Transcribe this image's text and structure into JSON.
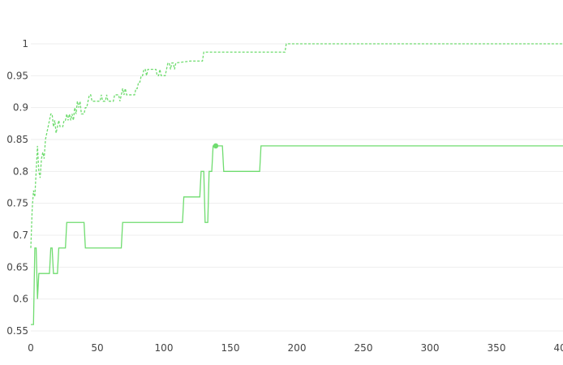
{
  "chart_data": {
    "type": "line",
    "xlim": [
      0,
      400
    ],
    "ylim": [
      0.55,
      1.0
    ],
    "x_ticks": [
      "0",
      "50",
      "100",
      "150",
      "200",
      "250",
      "300",
      "350",
      "400"
    ],
    "y_ticks": [
      "0.55",
      "0.6",
      "0.65",
      "0.7",
      "0.75",
      "0.8",
      "0.85",
      "0.9",
      "0.95",
      "1"
    ],
    "grid": "horizontal",
    "series": [
      {
        "style": "dashed",
        "color": "#6fdc6f",
        "points": [
          [
            0,
            0.68
          ],
          [
            1,
            0.74
          ],
          [
            2,
            0.77
          ],
          [
            3,
            0.76
          ],
          [
            4,
            0.8
          ],
          [
            5,
            0.84
          ],
          [
            6,
            0.8
          ],
          [
            7,
            0.79
          ],
          [
            8,
            0.82
          ],
          [
            9,
            0.83
          ],
          [
            10,
            0.82
          ],
          [
            11,
            0.85
          ],
          [
            12,
            0.86
          ],
          [
            13,
            0.87
          ],
          [
            14,
            0.88
          ],
          [
            15,
            0.89
          ],
          [
            16,
            0.89
          ],
          [
            17,
            0.87
          ],
          [
            18,
            0.88
          ],
          [
            19,
            0.86
          ],
          [
            20,
            0.87
          ],
          [
            21,
            0.88
          ],
          [
            22,
            0.87
          ],
          [
            23,
            0.87
          ],
          [
            24,
            0.87
          ],
          [
            25,
            0.88
          ],
          [
            26,
            0.88
          ],
          [
            27,
            0.89
          ],
          [
            28,
            0.88
          ],
          [
            29,
            0.89
          ],
          [
            30,
            0.88
          ],
          [
            31,
            0.89
          ],
          [
            32,
            0.88
          ],
          [
            33,
            0.9
          ],
          [
            34,
            0.89
          ],
          [
            35,
            0.91
          ],
          [
            36,
            0.9
          ],
          [
            37,
            0.91
          ],
          [
            38,
            0.89
          ],
          [
            40,
            0.89
          ],
          [
            41,
            0.9
          ],
          [
            42,
            0.9
          ],
          [
            43,
            0.91
          ],
          [
            44,
            0.92
          ],
          [
            45,
            0.92
          ],
          [
            46,
            0.91
          ],
          [
            48,
            0.91
          ],
          [
            50,
            0.91
          ],
          [
            52,
            0.91
          ],
          [
            53,
            0.92
          ],
          [
            54,
            0.91
          ],
          [
            56,
            0.91
          ],
          [
            57,
            0.92
          ],
          [
            58,
            0.91
          ],
          [
            62,
            0.91
          ],
          [
            63,
            0.92
          ],
          [
            66,
            0.92
          ],
          [
            67,
            0.91
          ],
          [
            68,
            0.92
          ],
          [
            69,
            0.93
          ],
          [
            70,
            0.92
          ],
          [
            71,
            0.93
          ],
          [
            72,
            0.92
          ],
          [
            78,
            0.92
          ],
          [
            79,
            0.93
          ],
          [
            80,
            0.93
          ],
          [
            81,
            0.94
          ],
          [
            82,
            0.94
          ],
          [
            83,
            0.95
          ],
          [
            84,
            0.95
          ],
          [
            85,
            0.96
          ],
          [
            86,
            0.96
          ],
          [
            87,
            0.95
          ],
          [
            88,
            0.96
          ],
          [
            89,
            0.96
          ],
          [
            94,
            0.96
          ],
          [
            95,
            0.95
          ],
          [
            96,
            0.95
          ],
          [
            97,
            0.96
          ],
          [
            98,
            0.95
          ],
          [
            100,
            0.95
          ],
          [
            101,
            0.95
          ],
          [
            102,
            0.96
          ],
          [
            103,
            0.97
          ],
          [
            104,
            0.97
          ],
          [
            105,
            0.96
          ],
          [
            106,
            0.97
          ],
          [
            107,
            0.97
          ],
          [
            108,
            0.96
          ],
          [
            109,
            0.97
          ],
          [
            120,
            0.973
          ],
          [
            129,
            0.973
          ],
          [
            130,
            0.987
          ],
          [
            150,
            0.987
          ],
          [
            180,
            0.987
          ],
          [
            191,
            0.987
          ],
          [
            192,
            1.0
          ],
          [
            300,
            1.0
          ],
          [
            400,
            1.0
          ]
        ]
      },
      {
        "style": "solid",
        "color": "#6fdc6f",
        "marker": [
          139,
          0.84
        ],
        "points": [
          [
            0,
            0.56
          ],
          [
            2,
            0.56
          ],
          [
            3,
            0.68
          ],
          [
            4,
            0.68
          ],
          [
            5,
            0.6
          ],
          [
            6,
            0.64
          ],
          [
            14,
            0.64
          ],
          [
            15,
            0.68
          ],
          [
            16,
            0.68
          ],
          [
            17,
            0.64
          ],
          [
            20,
            0.64
          ],
          [
            21,
            0.68
          ],
          [
            26,
            0.68
          ],
          [
            27,
            0.72
          ],
          [
            40,
            0.72
          ],
          [
            41,
            0.68
          ],
          [
            68,
            0.68
          ],
          [
            69,
            0.72
          ],
          [
            114,
            0.72
          ],
          [
            115,
            0.76
          ],
          [
            127,
            0.76
          ],
          [
            128,
            0.8
          ],
          [
            130,
            0.8
          ],
          [
            131,
            0.72
          ],
          [
            133,
            0.72
          ],
          [
            134,
            0.8
          ],
          [
            136,
            0.8
          ],
          [
            137,
            0.84
          ],
          [
            139,
            0.84
          ],
          [
            140,
            0.84
          ],
          [
            144,
            0.84
          ],
          [
            145,
            0.8
          ],
          [
            172,
            0.8
          ],
          [
            173,
            0.84
          ],
          [
            250,
            0.84
          ],
          [
            400,
            0.84
          ]
        ]
      }
    ]
  }
}
